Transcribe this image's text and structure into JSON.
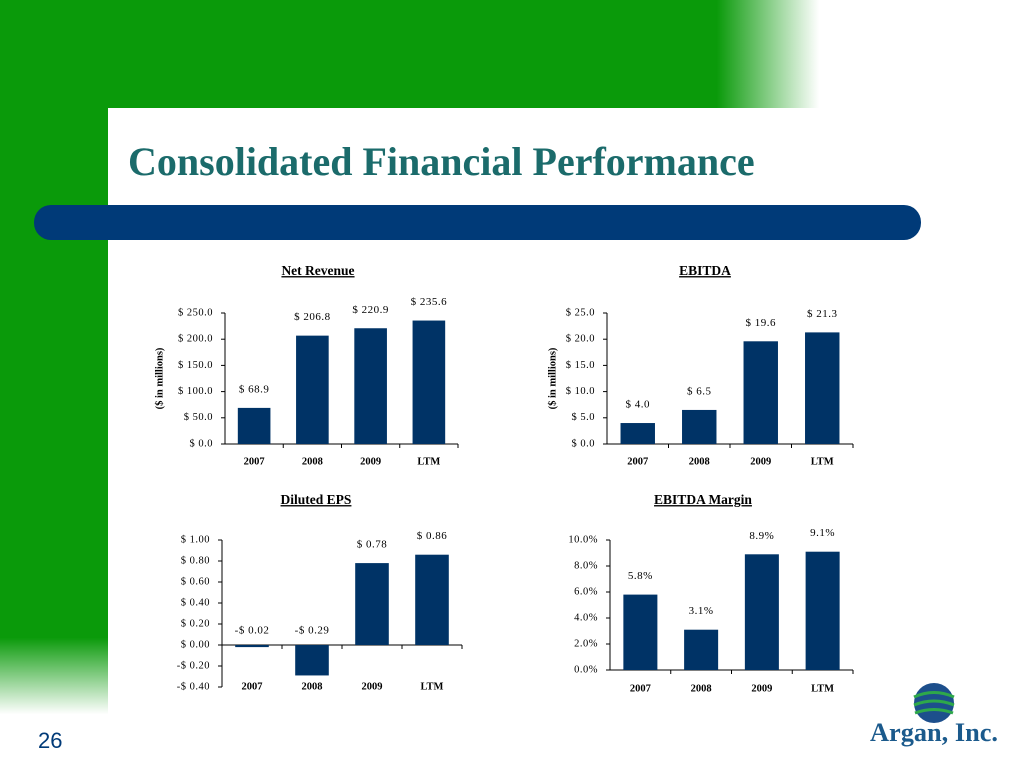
{
  "title": "Consolidated Financial Performance",
  "page_number": "26",
  "logo": "Argan, Inc.",
  "chart_data": [
    {
      "type": "bar",
      "title": "Net Revenue",
      "y_label": "($ in millions)",
      "categories": [
        "2007",
        "2008",
        "2009",
        "LTM"
      ],
      "values": [
        68.9,
        206.8,
        220.9,
        235.6
      ],
      "value_labels": [
        "$ 68.9",
        "$ 206.8",
        "$ 220.9",
        "$ 235.6"
      ],
      "color": "#003366",
      "ylim": [
        0,
        250
      ],
      "yticks": [
        {
          "value": 0,
          "label": "$ 0.0"
        },
        {
          "value": 50,
          "label": "$ 50.0"
        },
        {
          "value": 100,
          "label": "$ 100.0"
        },
        {
          "value": 150,
          "label": "$ 150.0"
        },
        {
          "value": 200,
          "label": "$ 200.0"
        },
        {
          "value": 250,
          "label": "$ 250.0"
        }
      ]
    },
    {
      "type": "bar",
      "title": "EBITDA",
      "y_label": "($ in millions)",
      "categories": [
        "2007",
        "2008",
        "2009",
        "LTM"
      ],
      "values": [
        4.0,
        6.5,
        19.6,
        21.3
      ],
      "value_labels": [
        "$ 4.0",
        "$ 6.5",
        "$ 19.6",
        "$ 21.3"
      ],
      "color": "#003366",
      "ylim": [
        0,
        25
      ],
      "yticks": [
        {
          "value": 0,
          "label": "$ 0.0"
        },
        {
          "value": 5,
          "label": "$ 5.0"
        },
        {
          "value": 10,
          "label": "$ 10.0"
        },
        {
          "value": 15,
          "label": "$ 15.0"
        },
        {
          "value": 20,
          "label": "$ 20.0"
        },
        {
          "value": 25,
          "label": "$ 25.0"
        }
      ]
    },
    {
      "type": "bar",
      "title": "Diluted EPS",
      "categories": [
        "2007",
        "2008",
        "2009",
        "LTM"
      ],
      "values": [
        -0.02,
        -0.29,
        0.78,
        0.86
      ],
      "value_labels": [
        "-$ 0.02",
        "-$ 0.29",
        "$ 0.78",
        "$ 0.86"
      ],
      "color": "#003366",
      "ylim": [
        -0.4,
        1.0
      ],
      "yticks": [
        {
          "value": -0.4,
          "label": "-$ 0.40"
        },
        {
          "value": -0.2,
          "label": "-$ 0.20"
        },
        {
          "value": 0,
          "label": "$ 0.00"
        },
        {
          "value": 0.2,
          "label": "$ 0.20"
        },
        {
          "value": 0.4,
          "label": "$ 0.40"
        },
        {
          "value": 0.6,
          "label": "$ 0.60"
        },
        {
          "value": 0.8,
          "label": "$ 0.80"
        },
        {
          "value": 1.0,
          "label": "$ 1.00"
        }
      ]
    },
    {
      "type": "bar",
      "title": "EBITDA Margin",
      "categories": [
        "2007",
        "2008",
        "2009",
        "LTM"
      ],
      "values": [
        5.8,
        3.1,
        8.9,
        9.1
      ],
      "value_labels": [
        "5.8%",
        "3.1%",
        "8.9%",
        "9.1%"
      ],
      "color": "#003366",
      "ylim": [
        0,
        10
      ],
      "yticks": [
        {
          "value": 0,
          "label": "0.0%"
        },
        {
          "value": 2,
          "label": "2.0%"
        },
        {
          "value": 4,
          "label": "4.0%"
        },
        {
          "value": 6,
          "label": "6.0%"
        },
        {
          "value": 8,
          "label": "8.0%"
        },
        {
          "value": 10,
          "label": "10.0%"
        }
      ]
    }
  ]
}
